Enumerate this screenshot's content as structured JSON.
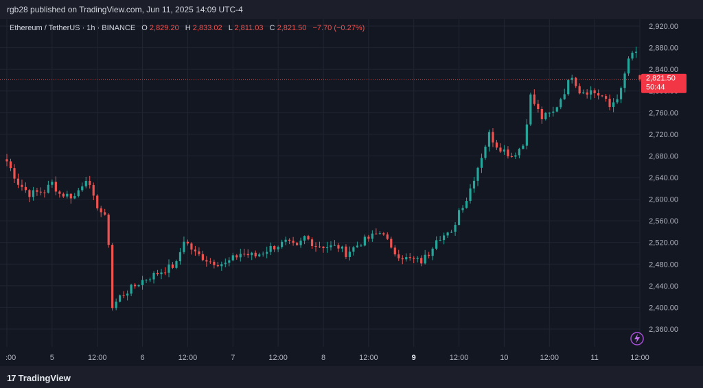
{
  "header": {
    "text": "rgb28 published on TradingView.com, Jun 11, 2025 14:09 UTC-4"
  },
  "footer": {
    "brand": "TradingView",
    "mark": "17"
  },
  "legend": {
    "symbol": "Ethereum / TetherUS · 1h · BINANCE",
    "o_label": "O",
    "o": "2,829.20",
    "h_label": "H",
    "h": "2,833.02",
    "l_label": "L",
    "l": "2,811.03",
    "c_label": "C",
    "c": "2,821.50",
    "change": "−7.70 (−0.27%)"
  },
  "price_tag": {
    "price": "2,821.50",
    "countdown": "50:44",
    "value": 2821.5
  },
  "colors": {
    "up": "#26a69a",
    "down": "#ef5350",
    "bg": "#131722",
    "grid": "#212531"
  },
  "icon": "lightning-icon",
  "chart_data": {
    "type": "candlestick",
    "interval": "1h",
    "ylim": [
      2320,
      2940
    ],
    "y_ticks": [
      2360,
      2400,
      2440,
      2480,
      2520,
      2560,
      2600,
      2640,
      2680,
      2720,
      2760,
      2800,
      2840,
      2880,
      2920
    ],
    "y_tick_labels": [
      "2,360.00",
      "2,400.00",
      "2,440.00",
      "2,480.00",
      "2,520.00",
      "2,560.00",
      "2,600.00",
      "2,640.00",
      "2,680.00",
      "2,720.00",
      "2,760.00",
      "2,800.00",
      "2,840.00",
      "2,880.00",
      "2,920.00"
    ],
    "x_ticks": [
      {
        "label": ":00",
        "bold": false,
        "index": 0
      },
      {
        "label": "5",
        "bold": false,
        "index": 12
      },
      {
        "label": "12:00",
        "bold": false,
        "index": 24
      },
      {
        "label": "6",
        "bold": false,
        "index": 36
      },
      {
        "label": "12:00",
        "bold": false,
        "index": 48
      },
      {
        "label": "7",
        "bold": false,
        "index": 60
      },
      {
        "label": "12:00",
        "bold": false,
        "index": 72
      },
      {
        "label": "8",
        "bold": false,
        "index": 84
      },
      {
        "label": "12:00",
        "bold": false,
        "index": 96
      },
      {
        "label": "9",
        "bold": true,
        "index": 108
      },
      {
        "label": "12:00",
        "bold": false,
        "index": 120
      },
      {
        "label": "10",
        "bold": false,
        "index": 132
      },
      {
        "label": "12:00",
        "bold": false,
        "index": 144
      },
      {
        "label": "11",
        "bold": false,
        "index": 156
      },
      {
        "label": "12:00",
        "bold": false,
        "index": 168
      }
    ],
    "anchors": [
      [
        0,
        2670
      ],
      [
        3,
        2630
      ],
      [
        6,
        2610
      ],
      [
        10,
        2615
      ],
      [
        12,
        2630
      ],
      [
        14,
        2610
      ],
      [
        18,
        2605
      ],
      [
        21,
        2640
      ],
      [
        23,
        2600
      ],
      [
        26,
        2565
      ],
      [
        27,
        2520
      ],
      [
        28,
        2400
      ],
      [
        30,
        2420
      ],
      [
        32,
        2430
      ],
      [
        36,
        2450
      ],
      [
        42,
        2470
      ],
      [
        45,
        2480
      ],
      [
        47,
        2525
      ],
      [
        50,
        2500
      ],
      [
        54,
        2485
      ],
      [
        58,
        2480
      ],
      [
        62,
        2500
      ],
      [
        66,
        2495
      ],
      [
        70,
        2510
      ],
      [
        74,
        2520
      ],
      [
        77,
        2510
      ],
      [
        79,
        2530
      ],
      [
        82,
        2515
      ],
      [
        86,
        2512
      ],
      [
        88,
        2512
      ],
      [
        90,
        2500
      ],
      [
        94,
        2520
      ],
      [
        98,
        2535
      ],
      [
        100,
        2540
      ],
      [
        102,
        2505
      ],
      [
        106,
        2490
      ],
      [
        110,
        2485
      ],
      [
        112,
        2500
      ],
      [
        114,
        2530
      ],
      [
        118,
        2535
      ],
      [
        120,
        2580
      ],
      [
        122,
        2600
      ],
      [
        125,
        2660
      ],
      [
        128,
        2720
      ],
      [
        130,
        2700
      ],
      [
        134,
        2680
      ],
      [
        137,
        2700
      ],
      [
        139,
        2790
      ],
      [
        142,
        2750
      ],
      [
        145,
        2760
      ],
      [
        148,
        2800
      ],
      [
        150,
        2830
      ],
      [
        152,
        2800
      ],
      [
        155,
        2800
      ],
      [
        158,
        2790
      ],
      [
        160,
        2770
      ],
      [
        163,
        2800
      ],
      [
        165,
        2860
      ],
      [
        167,
        2870
      ],
      [
        168,
        2822
      ]
    ],
    "num_candles": 169,
    "last_close": 2821.5
  }
}
